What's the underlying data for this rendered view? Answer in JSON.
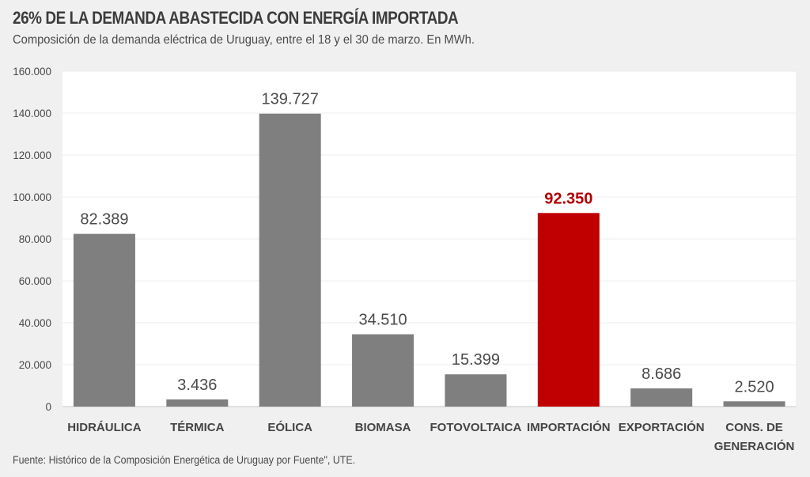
{
  "header": {
    "title": "26% DE LA DEMANDA ABASTECIDA CON ENERGÍA IMPORTADA",
    "subtitle": "Composición de la demanda eléctrica de Uruguay, entre el 18 y el 30 de marzo. En MWh."
  },
  "footer": {
    "source": "Fuente: Histórico de la Composición Energética de Uruguay por Fuente\", UTE."
  },
  "colors": {
    "bar": "#7f7f7f",
    "highlight": "#c00000",
    "highlight_label": "#b00000",
    "plot_bg": "#ffffff",
    "page_bg": "#f0f0f0",
    "grid": "#ececec"
  },
  "chart_data": {
    "type": "bar",
    "title": "26% DE LA DEMANDA ABASTECIDA CON ENERGÍA IMPORTADA",
    "subtitle": "Composición de la demanda eléctrica de Uruguay, entre el 18 y el 30 de marzo. En MWh.",
    "xlabel": "",
    "ylabel": "",
    "ylim": [
      0,
      160000
    ],
    "grid": true,
    "yticks": [
      0,
      20000,
      40000,
      60000,
      80000,
      100000,
      120000,
      140000,
      160000
    ],
    "ytick_labels": [
      "0",
      "20.000",
      "40.000",
      "60.000",
      "80.000",
      "100.000",
      "120.000",
      "140.000",
      "160.000"
    ],
    "categories": [
      [
        "HIDRÁULICA"
      ],
      [
        "TÉRMICA"
      ],
      [
        "EÓLICA"
      ],
      [
        "BIOMASA"
      ],
      [
        "FOTOVOLTAICA"
      ],
      [
        "IMPORTACIÓN"
      ],
      [
        "EXPORTACIÓN"
      ],
      [
        "CONS. DE",
        "GENERACIÓN"
      ]
    ],
    "values": [
      82389,
      3436,
      139727,
      34510,
      15399,
      92350,
      8686,
      2520
    ],
    "value_labels": [
      "82.389",
      "3.436",
      "139.727",
      "34.510",
      "15.399",
      "92.350",
      "8.686",
      "2.520"
    ],
    "highlight_index": 5
  }
}
